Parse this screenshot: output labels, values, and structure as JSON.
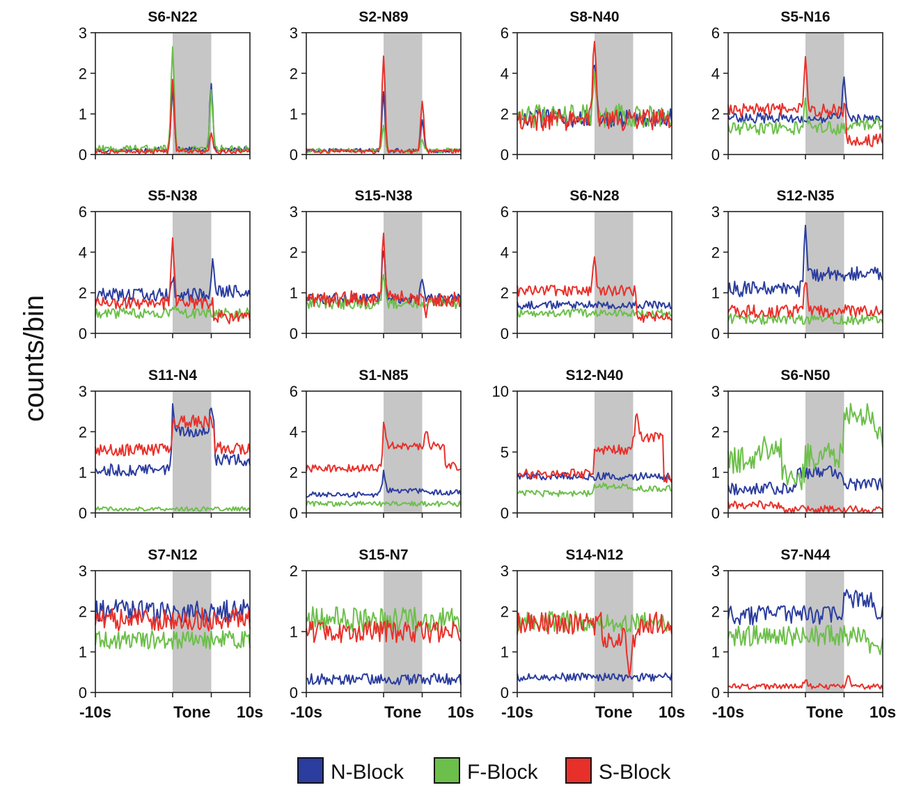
{
  "figure": {
    "ylabel": "counts/bin",
    "legend": [
      {
        "key": "N",
        "label": "N-Block",
        "color": "#2b3d9e"
      },
      {
        "key": "F",
        "label": "F-Block",
        "color": "#6cbf4a"
      },
      {
        "key": "S",
        "label": "S-Block",
        "color": "#e8302a"
      }
    ],
    "tone_band_color": "#c6c6c6"
  },
  "chart_data": [
    {
      "type": "line",
      "title": "S6-N22",
      "ylim": [
        0,
        3
      ],
      "yticks": [
        0,
        1,
        2,
        3
      ],
      "xlim": [
        -10,
        10
      ],
      "tone": [
        0,
        5
      ],
      "xticks": [],
      "series": {
        "N": {
          "base": 0.12,
          "noise": 0.05,
          "peaks": [
            [
              0,
              1.5
            ],
            [
              5,
              1.6
            ]
          ],
          "steps": []
        },
        "F": {
          "base": 0.14,
          "noise": 0.07,
          "peaks": [
            [
              0,
              2.5
            ],
            [
              5,
              1.4
            ]
          ],
          "steps": []
        },
        "S": {
          "base": 0.07,
          "noise": 0.05,
          "peaks": [
            [
              0,
              1.8
            ],
            [
              5,
              0.4
            ]
          ],
          "steps": []
        }
      }
    },
    {
      "type": "line",
      "title": "S2-N89",
      "ylim": [
        0,
        3
      ],
      "yticks": [
        0,
        1,
        2,
        3
      ],
      "xlim": [
        -10,
        10
      ],
      "tone": [
        0,
        5
      ],
      "xticks": [],
      "series": {
        "N": {
          "base": 0.1,
          "noise": 0.04,
          "peaks": [
            [
              0,
              1.4
            ],
            [
              5,
              0.8
            ]
          ],
          "steps": []
        },
        "F": {
          "base": 0.1,
          "noise": 0.04,
          "peaks": [
            [
              0,
              0.6
            ],
            [
              5,
              0.3
            ]
          ],
          "steps": []
        },
        "S": {
          "base": 0.08,
          "noise": 0.04,
          "peaks": [
            [
              0,
              2.35
            ],
            [
              5,
              1.25
            ]
          ],
          "steps": []
        }
      }
    },
    {
      "type": "line",
      "title": "S8-N40",
      "ylim": [
        0,
        6
      ],
      "yticks": [
        0,
        2,
        4,
        6
      ],
      "xlim": [
        -10,
        10
      ],
      "tone": [
        0,
        5
      ],
      "xticks": [],
      "series": {
        "N": {
          "base": 1.8,
          "noise": 0.35,
          "peaks": [
            [
              0,
              3.0
            ]
          ],
          "steps": []
        },
        "F": {
          "base": 1.9,
          "noise": 0.45,
          "peaks": [
            [
              0,
              1.8
            ]
          ],
          "steps": []
        },
        "S": {
          "base": 1.7,
          "noise": 0.4,
          "peaks": [
            [
              0,
              3.8
            ]
          ],
          "steps": []
        }
      }
    },
    {
      "type": "line",
      "title": "S5-N16",
      "ylim": [
        0,
        6
      ],
      "yticks": [
        0,
        2,
        4,
        6
      ],
      "xlim": [
        -10,
        10
      ],
      "tone": [
        0,
        5
      ],
      "xticks": [],
      "series": {
        "N": {
          "base": 1.8,
          "noise": 0.2,
          "peaks": [
            [
              5,
              1.9
            ]
          ],
          "steps": []
        },
        "F": {
          "base": 1.3,
          "noise": 0.25,
          "peaks": [
            [
              0,
              1.2
            ]
          ],
          "steps": [
            [
              5.2,
              1.5
            ]
          ]
        },
        "S": {
          "base": 2.2,
          "noise": 0.25,
          "peaks": [
            [
              0,
              2.5
            ]
          ],
          "steps": [
            [
              5.2,
              0.7
            ]
          ]
        }
      }
    },
    {
      "type": "line",
      "title": "S5-N38",
      "ylim": [
        0,
        6
      ],
      "yticks": [
        0,
        2,
        4,
        6
      ],
      "xlim": [
        -10,
        10
      ],
      "tone": [
        0,
        5
      ],
      "xticks": [],
      "series": {
        "N": {
          "base": 1.9,
          "noise": 0.25,
          "peaks": [
            [
              0,
              0.8
            ],
            [
              5.2,
              1.9
            ]
          ],
          "steps": [
            [
              5.5,
              2.1
            ]
          ]
        },
        "F": {
          "base": 1.0,
          "noise": 0.2,
          "peaks": [
            [
              0,
              0.5
            ]
          ],
          "steps": []
        },
        "S": {
          "base": 1.5,
          "noise": 0.25,
          "peaks": [
            [
              0,
              3.0
            ]
          ],
          "steps": [
            [
              5.2,
              0.8
            ]
          ]
        }
      }
    },
    {
      "type": "line",
      "title": "S15-N38",
      "ylim": [
        0,
        3
      ],
      "yticks": [
        0,
        1,
        2,
        3
      ],
      "xlim": [
        -10,
        10
      ],
      "tone": [
        0,
        5
      ],
      "xticks": [],
      "series": {
        "N": {
          "base": 0.85,
          "noise": 0.1,
          "peaks": [
            [
              0,
              1.2
            ],
            [
              5,
              0.5
            ]
          ],
          "steps": []
        },
        "F": {
          "base": 0.75,
          "noise": 0.12,
          "peaks": [
            [
              0,
              0.8
            ]
          ],
          "steps": []
        },
        "S": {
          "base": 0.85,
          "noise": 0.15,
          "peaks": [
            [
              0,
              1.45
            ],
            [
              5.5,
              -0.5
            ]
          ],
          "steps": []
        }
      }
    },
    {
      "type": "line",
      "title": "S6-N28",
      "ylim": [
        0,
        6
      ],
      "yticks": [
        0,
        2,
        4,
        6
      ],
      "xlim": [
        -10,
        10
      ],
      "tone": [
        0,
        5
      ],
      "xticks": [],
      "series": {
        "N": {
          "base": 1.4,
          "noise": 0.15,
          "peaks": [],
          "steps": []
        },
        "F": {
          "base": 1.0,
          "noise": 0.15,
          "peaks": [],
          "steps": []
        },
        "S": {
          "base": 2.1,
          "noise": 0.2,
          "peaks": [
            [
              0,
              1.9
            ]
          ],
          "steps": [
            [
              5.5,
              0.8
            ]
          ]
        }
      }
    },
    {
      "type": "line",
      "title": "S12-N35",
      "ylim": [
        0,
        3
      ],
      "yticks": [
        0,
        1,
        2,
        3
      ],
      "xlim": [
        -10,
        10
      ],
      "tone": [
        0,
        5
      ],
      "xticks": [],
      "series": {
        "N": {
          "base": 1.1,
          "noise": 0.15,
          "peaks": [
            [
              0,
              1.5
            ]
          ],
          "steps": [
            [
              0.5,
              1.45
            ]
          ]
        },
        "F": {
          "base": 0.35,
          "noise": 0.1,
          "peaks": [],
          "steps": []
        },
        "S": {
          "base": 0.55,
          "noise": 0.12,
          "peaks": [
            [
              0,
              0.8
            ]
          ],
          "steps": []
        }
      }
    },
    {
      "type": "line",
      "title": "S11-N4",
      "ylim": [
        0,
        3
      ],
      "yticks": [
        0,
        1,
        2,
        3
      ],
      "xlim": [
        -10,
        10
      ],
      "tone": [
        0,
        5
      ],
      "xticks": [],
      "series": {
        "N": {
          "base": 1.05,
          "noise": 0.12,
          "peaks": [
            [
              0,
              0.6
            ],
            [
              5,
              0.6
            ]
          ],
          "steps": [
            [
              0,
              2.0
            ],
            [
              5.5,
              1.3
            ]
          ]
        },
        "F": {
          "base": 0.1,
          "noise": 0.04,
          "peaks": [],
          "steps": []
        },
        "S": {
          "base": 1.55,
          "noise": 0.12,
          "peaks": [],
          "steps": [
            [
              0,
              2.25
            ],
            [
              5.5,
              1.6
            ]
          ]
        }
      }
    },
    {
      "type": "line",
      "title": "S1-N85",
      "ylim": [
        0,
        6
      ],
      "yticks": [
        0,
        2,
        4,
        6
      ],
      "xlim": [
        -10,
        10
      ],
      "tone": [
        0,
        5
      ],
      "xticks": [],
      "series": {
        "N": {
          "base": 0.9,
          "noise": 0.1,
          "peaks": [
            [
              0,
              0.9
            ]
          ],
          "steps": [
            [
              0,
              1.1
            ],
            [
              5.5,
              1.0
            ]
          ]
        },
        "F": {
          "base": 0.45,
          "noise": 0.1,
          "peaks": [],
          "steps": []
        },
        "S": {
          "base": 2.2,
          "noise": 0.15,
          "peaks": [
            [
              0,
              1.2
            ],
            [
              5.5,
              0.8
            ]
          ],
          "steps": [
            [
              0,
              3.3
            ],
            [
              5.5,
              3.3
            ],
            [
              8,
              2.3
            ]
          ]
        }
      }
    },
    {
      "type": "line",
      "title": "S12-N40",
      "ylim": [
        0,
        10
      ],
      "yticks": [
        0,
        5,
        10
      ],
      "xlim": [
        -10,
        10
      ],
      "tone": [
        0,
        5
      ],
      "xticks": [],
      "series": {
        "N": {
          "base": 3.0,
          "noise": 0.25,
          "peaks": [],
          "steps": []
        },
        "F": {
          "base": 1.6,
          "noise": 0.2,
          "peaks": [],
          "steps": [
            [
              0,
              2.2
            ],
            [
              5,
              2.0
            ]
          ]
        },
        "S": {
          "base": 3.2,
          "noise": 0.3,
          "peaks": [
            [
              5.5,
              2.0
            ]
          ],
          "steps": [
            [
              0,
              5.2
            ],
            [
              5,
              6.2
            ],
            [
              9,
              2.8
            ]
          ]
        }
      }
    },
    {
      "type": "line",
      "title": "S6-N50",
      "ylim": [
        0,
        3
      ],
      "yticks": [
        0,
        1,
        2,
        3
      ],
      "xlim": [
        -10,
        10
      ],
      "tone": [
        0,
        5
      ],
      "xticks": [],
      "series": {
        "N": {
          "base": 0.6,
          "noise": 0.12,
          "peaks": [],
          "steps": [
            [
              -1,
              1.0
            ],
            [
              5,
              0.7
            ]
          ]
        },
        "F": {
          "base": 1.3,
          "noise": 0.25,
          "peaks": [],
          "steps": [
            [
              -6,
              1.6
            ],
            [
              -3,
              0.9
            ],
            [
              0,
              1.4
            ],
            [
              5,
              2.4
            ],
            [
              9,
              1.9
            ]
          ]
        },
        "S": {
          "base": 0.2,
          "noise": 0.08,
          "peaks": [],
          "steps": [
            [
              -3,
              0.08
            ]
          ]
        }
      }
    },
    {
      "type": "line",
      "title": "S7-N12",
      "ylim": [
        0,
        3
      ],
      "yticks": [
        0,
        1,
        2,
        3
      ],
      "xlim": [
        -10,
        10
      ],
      "tone": [
        0,
        5
      ],
      "xticks": [
        "-10s",
        "Tone",
        "10s"
      ],
      "series": {
        "N": {
          "base": 2.0,
          "noise": 0.22,
          "peaks": [],
          "steps": []
        },
        "F": {
          "base": 1.3,
          "noise": 0.18,
          "peaks": [],
          "steps": []
        },
        "S": {
          "base": 1.8,
          "noise": 0.22,
          "peaks": [],
          "steps": []
        }
      }
    },
    {
      "type": "line",
      "title": "S15-N7",
      "ylim": [
        0,
        2
      ],
      "yticks": [
        0,
        1,
        2
      ],
      "xlim": [
        -10,
        10
      ],
      "tone": [
        0,
        5
      ],
      "xticks": [
        "-10s",
        "Tone",
        "10s"
      ],
      "series": {
        "N": {
          "base": 0.22,
          "noise": 0.07,
          "peaks": [],
          "steps": []
        },
        "F": {
          "base": 1.2,
          "noise": 0.16,
          "peaks": [],
          "steps": []
        },
        "S": {
          "base": 1.0,
          "noise": 0.14,
          "peaks": [],
          "steps": []
        }
      }
    },
    {
      "type": "line",
      "title": "S14-N12",
      "ylim": [
        0,
        3
      ],
      "yticks": [
        0,
        1,
        2,
        3
      ],
      "xlim": [
        -10,
        10
      ],
      "tone": [
        0,
        5
      ],
      "xticks": [
        "-10s",
        "Tone",
        "10s"
      ],
      "series": {
        "N": {
          "base": 0.38,
          "noise": 0.08,
          "peaks": [],
          "steps": []
        },
        "F": {
          "base": 1.75,
          "noise": 0.2,
          "peaks": [],
          "steps": []
        },
        "S": {
          "base": 1.7,
          "noise": 0.22,
          "peaks": [
            [
              4.5,
              -1.0
            ]
          ],
          "steps": [
            [
              1,
              1.3
            ],
            [
              5.5,
              1.7
            ]
          ]
        }
      }
    },
    {
      "type": "line",
      "title": "S7-N44",
      "ylim": [
        0,
        3
      ],
      "yticks": [
        0,
        1,
        2,
        3
      ],
      "xlim": [
        -10,
        10
      ],
      "tone": [
        0,
        5
      ],
      "xticks": [
        "-10s",
        "Tone",
        "10s"
      ],
      "series": {
        "N": {
          "base": 1.9,
          "noise": 0.18,
          "peaks": [],
          "steps": [
            [
              5,
              2.3
            ],
            [
              9,
              1.9
            ]
          ]
        },
        "F": {
          "base": 1.4,
          "noise": 0.2,
          "peaks": [],
          "steps": [
            [
              8,
              1.1
            ]
          ]
        },
        "S": {
          "base": 0.15,
          "noise": 0.05,
          "peaks": [
            [
              0,
              0.2
            ],
            [
              5.5,
              0.3
            ]
          ],
          "steps": []
        }
      }
    }
  ]
}
